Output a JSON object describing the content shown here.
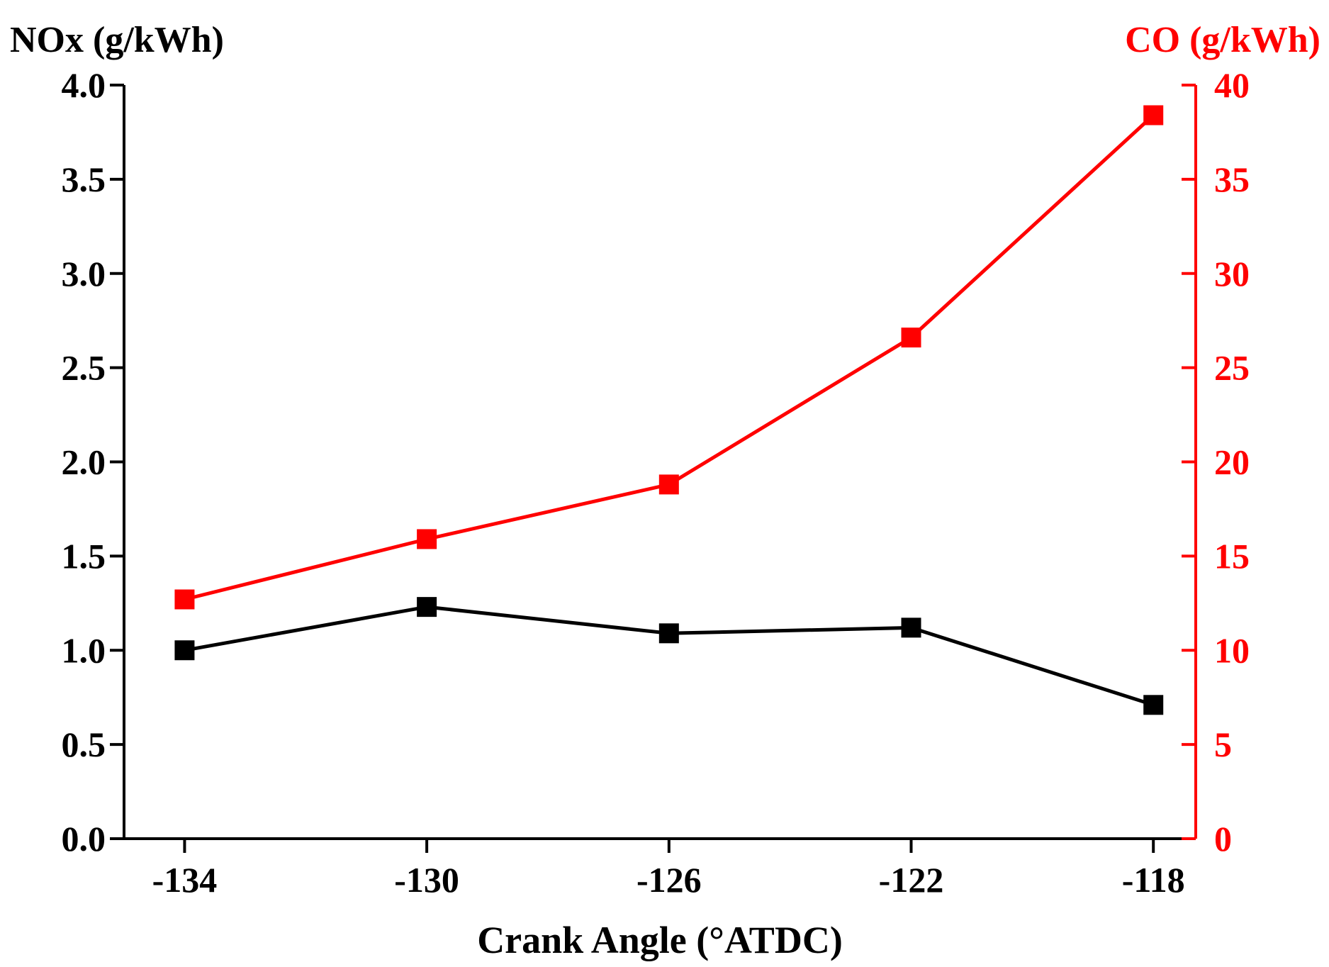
{
  "chart_data": {
    "type": "line",
    "title": "",
    "xlabel": "Crank Angle (°ATDC)",
    "ylabel_left": "NOx (g/kWh)",
    "ylabel_right": "CO (g/kWh)",
    "x": [
      -134,
      -130,
      -126,
      -122,
      -118
    ],
    "x_tick_labels": [
      "-134",
      "-130",
      "-126",
      "-122",
      "-118"
    ],
    "xlim": [
      -135,
      -117.3
    ],
    "ylim_left": [
      0,
      4.0
    ],
    "ylim_right": [
      0,
      40
    ],
    "y_left_ticks": [
      "0.0",
      "0.5",
      "1.0",
      "1.5",
      "2.0",
      "2.5",
      "3.0",
      "3.5",
      "4.0"
    ],
    "y_right_ticks": [
      "0",
      "5",
      "10",
      "15",
      "20",
      "25",
      "30",
      "35",
      "40"
    ],
    "grid": false,
    "legend": "none",
    "series": [
      {
        "name": "NOx",
        "axis": "left",
        "color": "#000000",
        "marker": "square",
        "values": [
          1.0,
          1.23,
          1.09,
          1.12,
          0.71
        ]
      },
      {
        "name": "CO",
        "axis": "right",
        "color": "#ff0000",
        "marker": "square",
        "values": [
          12.7,
          15.9,
          18.8,
          26.6,
          38.4
        ]
      }
    ]
  }
}
